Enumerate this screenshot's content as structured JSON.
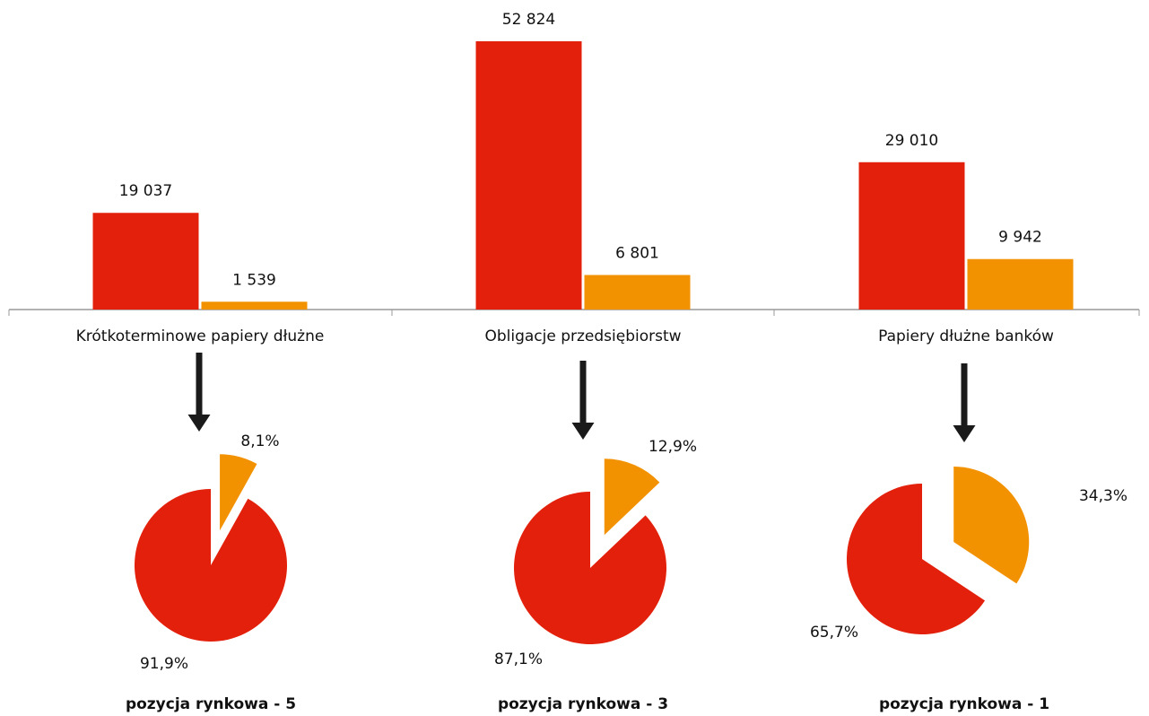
{
  "chart_data": [
    {
      "type": "bar",
      "categories": [
        "Krótkoterminowe papiery dłużne",
        "Obligacje przedsiębiorstw",
        "Papiery dłużne banków"
      ],
      "series": [
        {
          "color": "#e3200b",
          "values": [
            19037,
            52824,
            29010
          ],
          "value_labels": [
            "19 037",
            "52 824",
            "29 010"
          ]
        },
        {
          "color": "#f39200",
          "values": [
            1539,
            6801,
            9942
          ],
          "value_labels": [
            "1 539",
            "6 801",
            "9 942"
          ]
        }
      ]
    },
    {
      "type": "pie",
      "values": [
        8.1,
        91.9
      ],
      "value_labels": [
        "8,1%",
        "91,9%"
      ],
      "colors": [
        "#f39200",
        "#e3200b"
      ],
      "annotation": "pozycja rynkowa - 5"
    },
    {
      "type": "pie",
      "values": [
        12.9,
        87.1
      ],
      "value_labels": [
        "12,9%",
        "87,1%"
      ],
      "colors": [
        "#f39200",
        "#e3200b"
      ],
      "annotation": "pozycja rynkowa - 3"
    },
    {
      "type": "pie",
      "values": [
        34.3,
        65.7
      ],
      "value_labels": [
        "34,3%",
        "65,7%"
      ],
      "colors": [
        "#f39200",
        "#e3200b"
      ],
      "annotation": "pozycja rynkowa - 1"
    }
  ]
}
